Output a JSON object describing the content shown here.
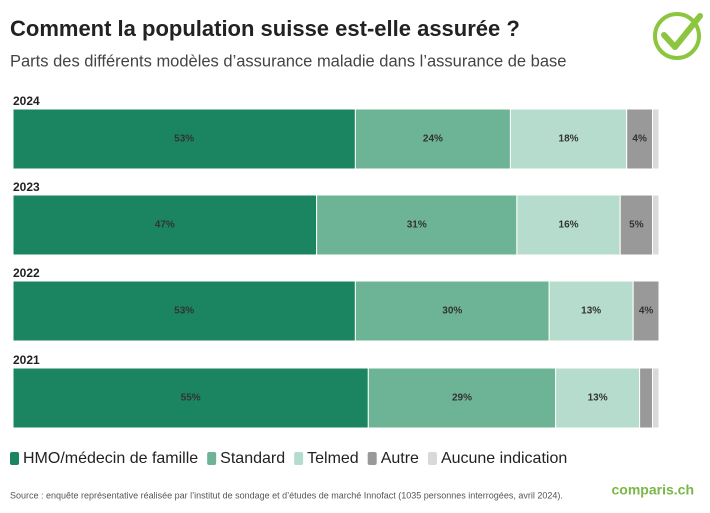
{
  "chart_data": {
    "type": "stacked-bar",
    "title": "Comment la population suisse est-elle assurée ?",
    "subtitle": "Parts des différents modèles d’assurance maladie dans l’assurance de base",
    "categories": [
      "2024",
      "2023",
      "2022",
      "2021"
    ],
    "series": [
      {
        "name": "HMO/médecin de famille",
        "color": "#1a8560",
        "values": [
          53,
          47,
          53,
          55
        ],
        "value_labels": [
          "53%",
          "47%",
          "53%",
          "55%"
        ]
      },
      {
        "name": "Standard",
        "color": "#6db396",
        "values": [
          24,
          31,
          30,
          29
        ],
        "value_labels": [
          "24%",
          "31%",
          "30%",
          "29%"
        ]
      },
      {
        "name": "Telmed",
        "color": "#b6dccd",
        "values": [
          18,
          16,
          13,
          13
        ],
        "value_labels": [
          "18%",
          "16%",
          "13%",
          "13%"
        ]
      },
      {
        "name": "Autre",
        "color": "#999999",
        "values": [
          4,
          5,
          4,
          2
        ],
        "value_labels": [
          "4%",
          "5%",
          "4%",
          null
        ]
      },
      {
        "name": "Aucune indication",
        "color": "#d9d9d9",
        "values": [
          1,
          1,
          0,
          1
        ],
        "value_labels": [
          null,
          null,
          null,
          null
        ]
      }
    ],
    "source": "Source : enquête représentative réalisée par l’institut de sondage et d’études de marché Innofact (1035 personnes interrogées, avril 2024).",
    "logo": "comparis.ch"
  }
}
